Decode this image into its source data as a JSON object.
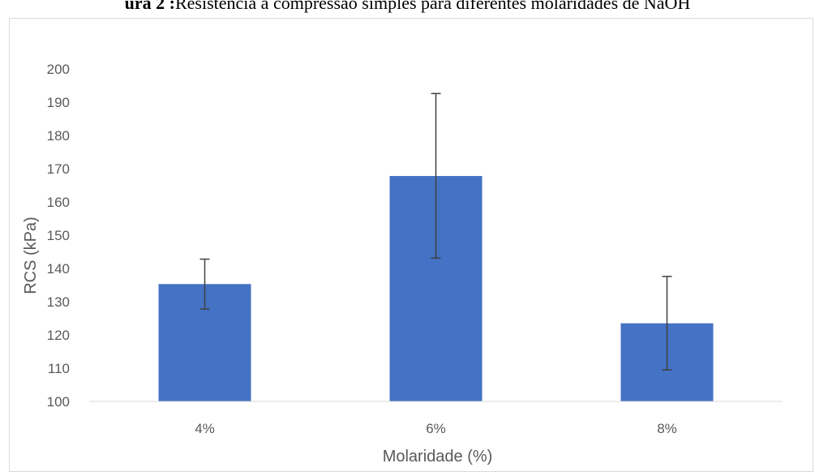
{
  "caption": {
    "prefix": "ura 2 :",
    "text": "Resistência à compressão simples para diferentes molaridades de NaOH"
  },
  "chart_data": {
    "type": "bar",
    "title": "",
    "xlabel": "Molaridade (%)",
    "ylabel": "RCS (kPa)",
    "categories": [
      "4%",
      "6%",
      "8%"
    ],
    "values": [
      135.3,
      167.8,
      123.5
    ],
    "error_upper": [
      142.8,
      192.6,
      137.6
    ],
    "error_lower": [
      127.8,
      143.1,
      109.5
    ],
    "ylim": [
      100,
      200
    ],
    "yticks": [
      100,
      110,
      120,
      130,
      140,
      150,
      160,
      170,
      180,
      190,
      200
    ],
    "grid": false,
    "legend": "none",
    "bar_color": "#4472C4",
    "error_bar_color": "#404040",
    "axis_color": "#D9D9D9"
  }
}
